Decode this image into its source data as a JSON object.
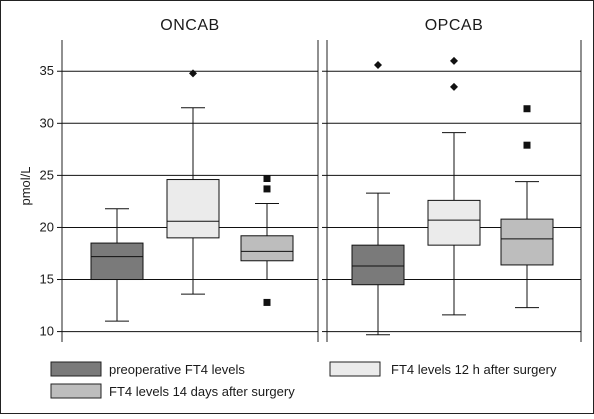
{
  "chart_data": {
    "type": "box",
    "ylabel": "pmol/L",
    "ylim": [
      9,
      38
    ],
    "yticks": [
      10,
      15,
      20,
      25,
      30,
      35
    ],
    "grid": true,
    "legend_position": "bottom",
    "series": [
      {
        "name": "preoperative FT4 levels",
        "color": "#7a7a7a"
      },
      {
        "name": "FT4 levels 12 h after surgery",
        "color": "#ebebeb"
      },
      {
        "name": "FT4 levels 14 days after surgery",
        "color": "#bdbdbd"
      }
    ],
    "panels": [
      {
        "title": "ONCAB",
        "boxes": [
          {
            "series": 0,
            "whisker_low": 11.0,
            "q1": 15.0,
            "median": 17.2,
            "q3": 18.5,
            "whisker_high": 21.8,
            "outliers": []
          },
          {
            "series": 1,
            "whisker_low": 13.6,
            "q1": 19.0,
            "median": 20.6,
            "q3": 24.6,
            "whisker_high": 31.5,
            "outliers": [
              {
                "y": 34.8,
                "marker": "diamond"
              }
            ]
          },
          {
            "series": 2,
            "whisker_low": 15.0,
            "q1": 16.8,
            "median": 17.7,
            "q3": 19.2,
            "whisker_high": 22.3,
            "outliers": [
              {
                "y": 24.7,
                "marker": "square"
              },
              {
                "y": 23.7,
                "marker": "square"
              },
              {
                "y": 12.8,
                "marker": "square"
              }
            ]
          }
        ]
      },
      {
        "title": "OPCAB",
        "boxes": [
          {
            "series": 0,
            "whisker_low": 9.7,
            "q1": 14.5,
            "median": 16.3,
            "q3": 18.3,
            "whisker_high": 23.3,
            "outliers": [
              {
                "y": 35.6,
                "marker": "diamond"
              }
            ]
          },
          {
            "series": 1,
            "whisker_low": 11.6,
            "q1": 18.3,
            "median": 20.7,
            "q3": 22.6,
            "whisker_high": 29.1,
            "outliers": [
              {
                "y": 36.0,
                "marker": "diamond"
              },
              {
                "y": 33.5,
                "marker": "diamond"
              }
            ]
          },
          {
            "series": 2,
            "whisker_low": 12.3,
            "q1": 16.4,
            "median": 18.9,
            "q3": 20.8,
            "whisker_high": 24.4,
            "outliers": [
              {
                "y": 31.4,
                "marker": "square"
              },
              {
                "y": 27.9,
                "marker": "square"
              }
            ]
          }
        ]
      }
    ]
  }
}
